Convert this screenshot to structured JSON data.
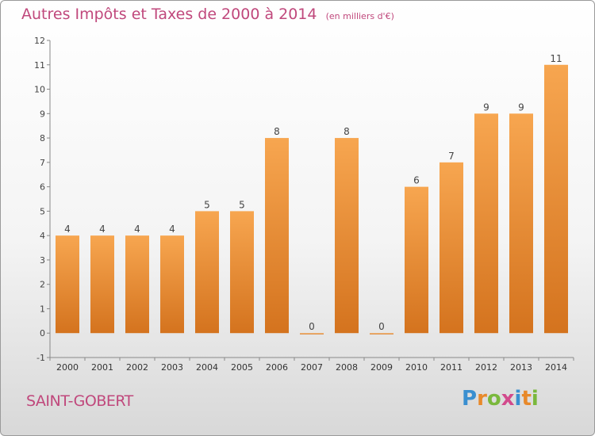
{
  "header": {
    "title": "Autres Impôts et Taxes de 2000 à 2014",
    "unit": "(en milliers d'€)"
  },
  "commune": "SAINT-GOBERT",
  "logo": {
    "letters": [
      "P",
      "r",
      "o",
      "x",
      "i",
      "t",
      "i"
    ],
    "colors": [
      "#3a8fd0",
      "#e8892a",
      "#7ab83c",
      "#d24a8c",
      "#3a8fd0",
      "#e8892a",
      "#7ab83c"
    ]
  },
  "chart_data": {
    "type": "bar",
    "categories": [
      "2000",
      "2001",
      "2002",
      "2003",
      "2004",
      "2005",
      "2006",
      "2007",
      "2008",
      "2009",
      "2010",
      "2011",
      "2012",
      "2013",
      "2014"
    ],
    "values": [
      4,
      4,
      4,
      4,
      5,
      5,
      8,
      0,
      8,
      0,
      6,
      7,
      9,
      9,
      11
    ],
    "title": "Autres Impôts et Taxes de 2000 à 2014",
    "ylim": [
      -1,
      12
    ],
    "yticks": [
      -1,
      0,
      1,
      2,
      3,
      4,
      5,
      6,
      7,
      8,
      9,
      10,
      11,
      12
    ],
    "grid": false,
    "bar_color": "#f0922e"
  }
}
